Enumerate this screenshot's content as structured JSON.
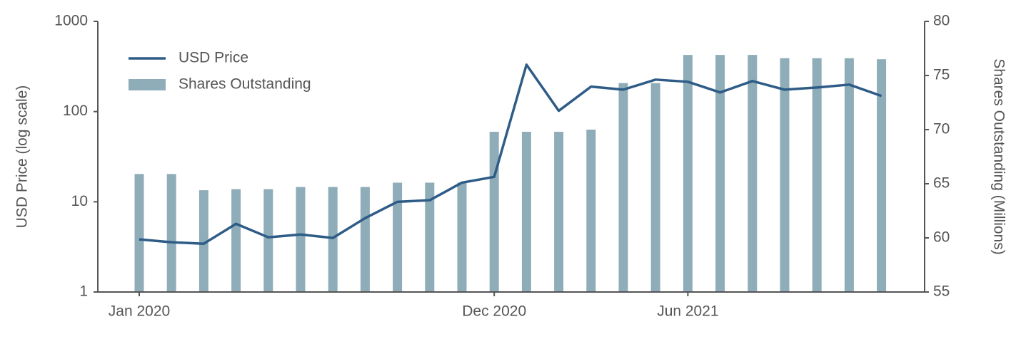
{
  "chart_data": {
    "type": "combo",
    "x": [
      "2020-01",
      "2020-02",
      "2020-03",
      "2020-04",
      "2020-05",
      "2020-06",
      "2020-07",
      "2020-08",
      "2020-09",
      "2020-10",
      "2020-11",
      "2020-12",
      "2021-01",
      "2021-02",
      "2021-03",
      "2021-04",
      "2021-05",
      "2021-06",
      "2021-07",
      "2021-08",
      "2021-09",
      "2021-10",
      "2021-11",
      "2021-12"
    ],
    "xticks": [
      {
        "value": "2020-01",
        "label": "Jan 2020"
      },
      {
        "value": "2020-12",
        "label": "Dec 2020"
      },
      {
        "value": "2021-06",
        "label": "Jun 2021"
      }
    ],
    "ylabel": "USD Price (log scale)",
    "y2label": "Shares Outstanding (Millions)",
    "ylim": [
      1,
      1000
    ],
    "yticks": [
      1,
      10,
      100,
      1000
    ],
    "yscale": "log",
    "y2lim": [
      55,
      80
    ],
    "y2ticks": [
      55,
      60,
      65,
      70,
      75,
      80
    ],
    "legend": "upper left",
    "series": [
      {
        "name": "USD Price",
        "type": "line",
        "color": "#2e5c87",
        "values": [
          3.83,
          3.56,
          3.43,
          5.7,
          4.04,
          4.34,
          3.97,
          6.59,
          10.0,
          10.4,
          16.3,
          18.9,
          331,
          102,
          189,
          175,
          226,
          214,
          163,
          218,
          175,
          185,
          199,
          149
        ]
      },
      {
        "name": "Shares Outstanding",
        "type": "bar",
        "axis": "y2",
        "color": "#8fadb8",
        "values": [
          65.9,
          65.9,
          64.4,
          64.5,
          64.5,
          64.7,
          64.7,
          64.7,
          65.1,
          65.1,
          65.1,
          69.8,
          69.8,
          69.8,
          70.0,
          74.3,
          74.3,
          76.9,
          76.9,
          76.9,
          76.6,
          76.6,
          76.6,
          76.5
        ]
      }
    ]
  }
}
